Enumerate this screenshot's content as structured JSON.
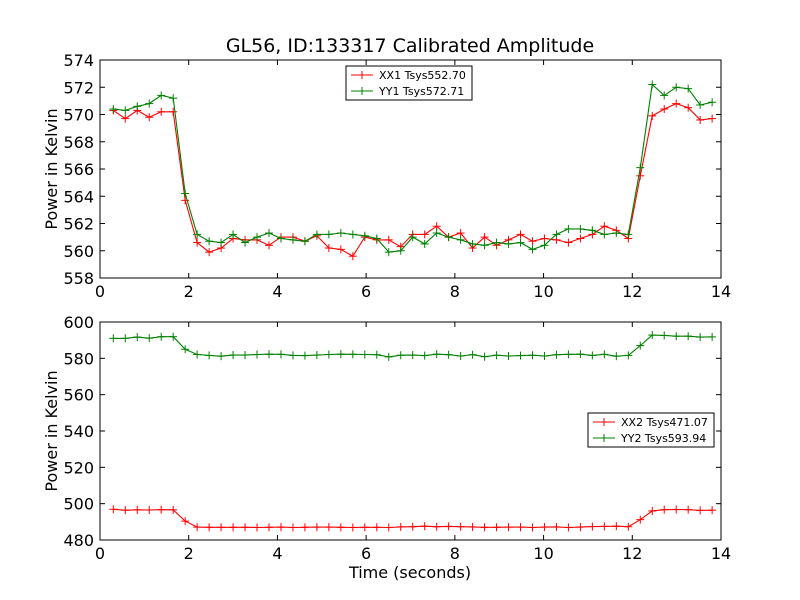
{
  "chart_data": [
    {
      "type": "line",
      "title": "GL56, ID:133317 Calibrated Amplitude",
      "xlabel": "",
      "ylabel": "Power in Kelvin",
      "xlim": [
        0,
        14
      ],
      "ylim": [
        558,
        574
      ],
      "xticks": [
        "0",
        "2",
        "4",
        "6",
        "8",
        "10",
        "12",
        "14"
      ],
      "yticks": [
        "558",
        "560",
        "562",
        "564",
        "566",
        "568",
        "570",
        "572",
        "574"
      ],
      "legend_position": "upper center",
      "x": [
        0.3,
        0.57,
        0.84,
        1.11,
        1.38,
        1.65,
        1.92,
        2.19,
        2.46,
        2.73,
        3.0,
        3.27,
        3.54,
        3.81,
        4.08,
        4.35,
        4.62,
        4.89,
        5.16,
        5.43,
        5.7,
        5.97,
        6.24,
        6.51,
        6.78,
        7.05,
        7.32,
        7.59,
        7.86,
        8.13,
        8.4,
        8.67,
        8.94,
        9.21,
        9.48,
        9.75,
        10.02,
        10.29,
        10.56,
        10.83,
        11.1,
        11.37,
        11.64,
        11.91,
        12.18,
        12.45,
        12.72,
        12.99,
        13.26,
        13.53,
        13.8
      ],
      "series": [
        {
          "name": "XX1 Tsys552.70",
          "color": "#ff0000",
          "values": [
            570.3,
            569.7,
            570.3,
            569.8,
            570.2,
            570.2,
            563.7,
            560.6,
            559.9,
            560.2,
            560.9,
            560.8,
            560.8,
            560.4,
            561.0,
            561.0,
            560.7,
            561.1,
            560.2,
            560.1,
            559.6,
            561.0,
            560.8,
            560.8,
            560.3,
            561.2,
            561.2,
            561.8,
            561.0,
            561.3,
            560.2,
            561.0,
            560.4,
            560.8,
            561.2,
            560.7,
            560.9,
            560.8,
            560.6,
            560.9,
            561.2,
            561.8,
            561.5,
            560.9,
            565.5,
            569.9,
            570.4,
            570.8,
            570.5,
            569.6,
            569.7
          ]
        },
        {
          "name": "YY1 Tsys572.71",
          "color": "#008000",
          "values": [
            570.4,
            570.3,
            570.6,
            570.8,
            571.4,
            571.2,
            564.2,
            561.2,
            560.7,
            560.6,
            561.2,
            560.6,
            561.0,
            561.3,
            560.9,
            560.8,
            560.7,
            561.2,
            561.2,
            561.3,
            561.2,
            561.1,
            560.9,
            559.9,
            560.0,
            561.0,
            560.5,
            561.3,
            561.0,
            560.8,
            560.5,
            560.4,
            560.6,
            560.5,
            560.6,
            560.1,
            560.4,
            561.2,
            561.6,
            561.6,
            561.5,
            561.2,
            561.3,
            561.2,
            566.1,
            572.2,
            571.4,
            572.0,
            571.9,
            570.7,
            570.9
          ]
        }
      ]
    },
    {
      "type": "line",
      "title": "",
      "xlabel": "Time (seconds)",
      "ylabel": "Power in Kelvin",
      "xlim": [
        0,
        14
      ],
      "ylim": [
        480,
        600
      ],
      "xticks": [
        "0",
        "2",
        "4",
        "6",
        "8",
        "10",
        "12",
        "14"
      ],
      "yticks": [
        "480",
        "500",
        "520",
        "540",
        "560",
        "580",
        "600"
      ],
      "legend_position": "center right",
      "x": [
        0.3,
        0.57,
        0.84,
        1.11,
        1.38,
        1.65,
        1.92,
        2.19,
        2.46,
        2.73,
        3.0,
        3.27,
        3.54,
        3.81,
        4.08,
        4.35,
        4.62,
        4.89,
        5.16,
        5.43,
        5.7,
        5.97,
        6.24,
        6.51,
        6.78,
        7.05,
        7.32,
        7.59,
        7.86,
        8.13,
        8.4,
        8.67,
        8.94,
        9.21,
        9.48,
        9.75,
        10.02,
        10.29,
        10.56,
        10.83,
        11.1,
        11.37,
        11.64,
        11.91,
        12.18,
        12.45,
        12.72,
        12.99,
        13.26,
        13.53,
        13.8
      ],
      "series": [
        {
          "name": "XX2 Tsys471.07",
          "color": "#ff0000",
          "values": [
            496.9,
            496.4,
            496.6,
            496.5,
            496.7,
            496.6,
            490.4,
            487.1,
            487.0,
            487.0,
            487.0,
            487.0,
            486.9,
            487.0,
            487.1,
            486.9,
            487.0,
            487.1,
            487.1,
            487.0,
            486.9,
            487.0,
            487.0,
            486.9,
            487.2,
            487.3,
            487.6,
            487.3,
            487.5,
            487.3,
            487.2,
            487.0,
            487.0,
            487.1,
            487.1,
            486.9,
            487.1,
            487.2,
            486.9,
            487.1,
            487.4,
            487.5,
            487.6,
            487.3,
            491.2,
            496.0,
            496.7,
            496.8,
            496.7,
            496.3,
            496.4
          ]
        },
        {
          "name": "YY2 Tsys593.94",
          "color": "#008000",
          "values": [
            591.0,
            591.0,
            591.7,
            591.1,
            591.9,
            591.9,
            585.0,
            582.1,
            581.6,
            581.2,
            581.8,
            581.8,
            582.1,
            582.3,
            582.2,
            581.6,
            581.5,
            581.8,
            582.1,
            582.3,
            582.2,
            582.1,
            582.0,
            580.8,
            581.7,
            581.8,
            581.5,
            582.3,
            582.0,
            581.3,
            582.0,
            580.9,
            581.7,
            581.3,
            581.5,
            581.7,
            581.3,
            582.0,
            582.2,
            582.3,
            581.6,
            582.2,
            581.2,
            581.6,
            587.0,
            592.8,
            592.6,
            592.2,
            592.2,
            591.7,
            591.8
          ]
        }
      ]
    }
  ]
}
